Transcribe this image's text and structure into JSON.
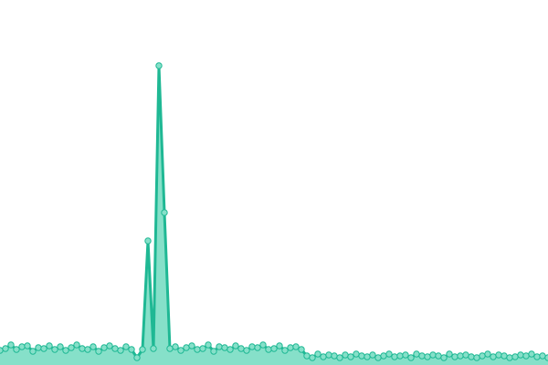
{
  "chart_data": {
    "type": "area",
    "color": "#1fb894",
    "fill": "#86e0c9",
    "ylim": [
      0,
      330
    ],
    "values": [
      16,
      18,
      22,
      17,
      20,
      21,
      15,
      19,
      18,
      21,
      17,
      20,
      16,
      19,
      22,
      18,
      17,
      20,
      15,
      19,
      21,
      18,
      16,
      20,
      17,
      8,
      17,
      136,
      18,
      328,
      167,
      18,
      20,
      16,
      19,
      21,
      17,
      18,
      22,
      15,
      20,
      19,
      17,
      21,
      18,
      16,
      20,
      19,
      22,
      17,
      18,
      21,
      16,
      19,
      20,
      17,
      10,
      8,
      12,
      9,
      11,
      10,
      8,
      11,
      9,
      12,
      10,
      9,
      11,
      8,
      10,
      12,
      9,
      10,
      11,
      8,
      12,
      10,
      9,
      11,
      10,
      8,
      12,
      9,
      10,
      11,
      9,
      8,
      10,
      12,
      9,
      11,
      10,
      8,
      9,
      11,
      10,
      12,
      9,
      10,
      8
    ]
  }
}
